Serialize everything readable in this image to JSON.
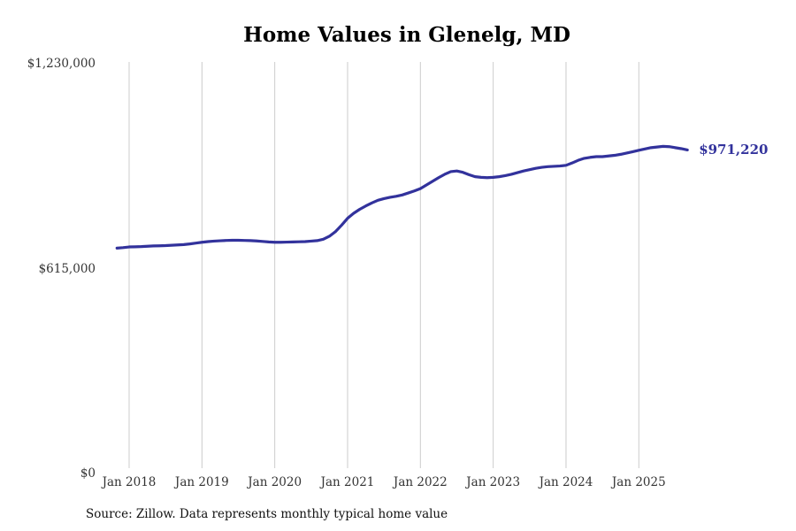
{
  "chart_data": {
    "type": "line",
    "title": "Home Values in Glenelg, MD",
    "source_note": "Source: Zillow. Data represents monthly typical home value",
    "end_label": "$971,220",
    "grid": "vertical-only",
    "legend": "none",
    "ylim": [
      0,
      1230000
    ],
    "y_ticks": [
      {
        "label": "$0",
        "value": 0
      },
      {
        "label": "$615,000",
        "value": 615000
      },
      {
        "label": "$1,230,000",
        "value": 1230000
      }
    ],
    "x_ticks": [
      "Jan 2018",
      "Jan 2019",
      "Jan 2020",
      "Jan 2021",
      "Jan 2022",
      "Jan 2023",
      "Jan 2024",
      "Jan 2025"
    ],
    "colors": {
      "line": "#32329c",
      "end_label": "#32329c",
      "gridline": "#cccccc",
      "tick_text": "#333333"
    },
    "series": [
      {
        "name": "Monthly typical home value (USD)",
        "start_month": "Nov 2017",
        "frequency": "monthly",
        "values": [
          676500,
          678000,
          680000,
          680500,
          681000,
          682000,
          683000,
          683500,
          684000,
          685000,
          686000,
          687000,
          689000,
          691500,
          694000,
          696000,
          697500,
          698500,
          699500,
          700000,
          700000,
          699500,
          699000,
          698000,
          696500,
          695000,
          694000,
          694000,
          694500,
          695000,
          695500,
          696000,
          697500,
          699000,
          703000,
          712000,
          726000,
          745000,
          766000,
          781000,
          793000,
          803000,
          812000,
          820000,
          825000,
          829000,
          832000,
          836000,
          842000,
          848000,
          855000,
          866000,
          877000,
          888000,
          898000,
          906000,
          908000,
          904000,
          897000,
          891000,
          889000,
          888000,
          889000,
          891000,
          894000,
          898000,
          903000,
          908000,
          912000,
          916000,
          919000,
          921000,
          922000,
          923000,
          925000,
          932000,
          940000,
          946000,
          949000,
          951000,
          951000,
          953000,
          955000,
          958000,
          962000,
          966000,
          970000,
          974000,
          978000,
          980000,
          982000,
          981000,
          978000,
          975000,
          971220
        ],
        "last_value": 971220
      }
    ]
  }
}
